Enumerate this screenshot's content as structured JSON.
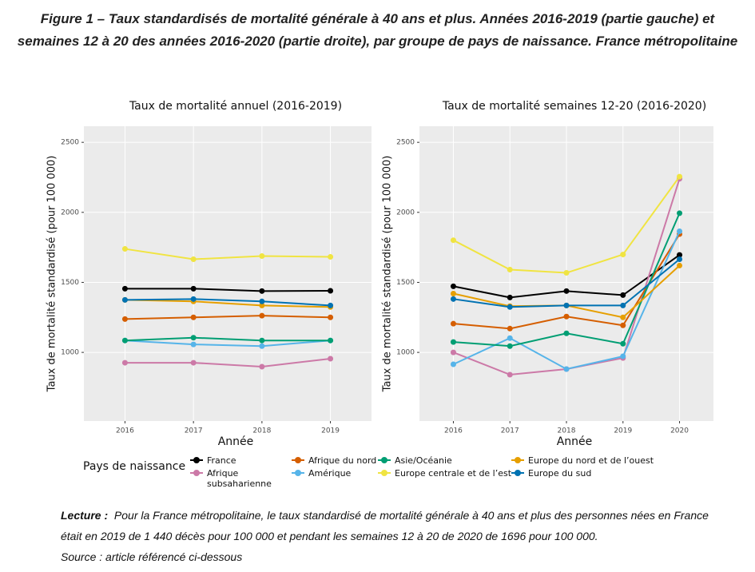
{
  "figure_title": "Figure 1 – Taux standardisés de mortalité générale à 40 ans et plus. Années 2016-2019 (partie gauche) et semaines 12 à 20 des années 2016-2020 (partie droite), par groupe de pays de naissance. France métropolitaine",
  "chart_data": [
    {
      "type": "line",
      "title": "Taux de mortalité annuel (2016-2019)",
      "x_label": "Année",
      "y_label": "Taux de mortalité standardisé (pour 100 000)",
      "x": [
        2016,
        2017,
        2018,
        2019
      ],
      "xlim": [
        2015.4,
        2019.6
      ],
      "xticks": [
        2016,
        2017,
        2018,
        2019
      ],
      "ylim": [
        510,
        2615
      ],
      "yticks": [
        1000,
        1500,
        2000,
        2500
      ],
      "grid": true,
      "series": [
        {
          "name": "France",
          "color": "#000000",
          "values": [
            1455,
            1455,
            1438,
            1440
          ]
        },
        {
          "name": "Afrique subsaharienne",
          "color": "#cc79a7",
          "values": [
            926,
            926,
            898,
            955
          ]
        },
        {
          "name": "Afrique du nord",
          "color": "#d55e00",
          "values": [
            1238,
            1250,
            1262,
            1250
          ]
        },
        {
          "name": "Amérique",
          "color": "#56b4e9",
          "values": [
            1085,
            1057,
            1045,
            1085
          ]
        },
        {
          "name": "Asie/Océanie",
          "color": "#009e73",
          "values": [
            1085,
            1105,
            1085,
            1085
          ]
        },
        {
          "name": "Europe centrale et de l’est",
          "color": "#f0e442",
          "values": [
            1739,
            1665,
            1688,
            1682
          ]
        },
        {
          "name": "Europe du nord et de l’ouest",
          "color": "#e69f00",
          "values": [
            1375,
            1364,
            1335,
            1324
          ]
        },
        {
          "name": "Europe du sud",
          "color": "#0072b2",
          "values": [
            1375,
            1381,
            1364,
            1335
          ]
        }
      ]
    },
    {
      "type": "line",
      "title": "Taux de mortalité semaines 12-20 (2016-2020)",
      "x_label": "Année",
      "y_label": "Taux de mortalité standardisé (pour 100 000)",
      "x": [
        2016,
        2017,
        2018,
        2019,
        2020
      ],
      "xlim": [
        2015.4,
        2020.6
      ],
      "xticks": [
        2016,
        2017,
        2018,
        2019,
        2020
      ],
      "ylim": [
        510,
        2615
      ],
      "yticks": [
        1000,
        1500,
        2000,
        2500
      ],
      "grid": true,
      "series": [
        {
          "name": "France",
          "color": "#000000",
          "values": [
            1472,
            1392,
            1438,
            1409,
            1696
          ]
        },
        {
          "name": "Afrique subsaharienne",
          "color": "#cc79a7",
          "values": [
            1000,
            841,
            881,
            960,
            2240
          ]
        },
        {
          "name": "Afrique du nord",
          "color": "#d55e00",
          "values": [
            1205,
            1170,
            1256,
            1193,
            1845
          ]
        },
        {
          "name": "Amérique",
          "color": "#56b4e9",
          "values": [
            915,
            1102,
            881,
            972,
            1865
          ]
        },
        {
          "name": "Asie/Océanie",
          "color": "#009e73",
          "values": [
            1074,
            1045,
            1136,
            1062,
            1994
          ]
        },
        {
          "name": "Europe centrale et de l’est",
          "color": "#f0e442",
          "values": [
            1801,
            1591,
            1568,
            1699,
            2255
          ]
        },
        {
          "name": "Europe du nord et de l’ouest",
          "color": "#e69f00",
          "values": [
            1420,
            1330,
            1335,
            1250,
            1620
          ]
        },
        {
          "name": "Europe du sud",
          "color": "#0072b2",
          "values": [
            1381,
            1324,
            1335,
            1335,
            1665
          ]
        }
      ]
    }
  ],
  "legend_title": "Pays de naissance",
  "note": {
    "label": "Lecture :",
    "text": "Pour la France métropolitaine, le taux standardisé de mortalité générale à 40 ans et plus des personnes nées en France était en 2019 de 1 440 décès pour 100 000 et pendant les semaines 12 à 20 de 2020 de 1696 pour 100 000.",
    "source": "Source : article référencé ci-dessous"
  }
}
